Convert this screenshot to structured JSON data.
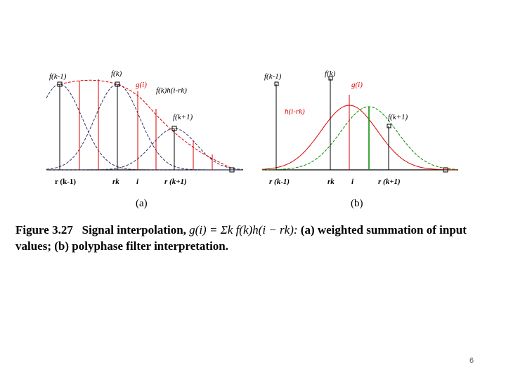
{
  "figure_a": {
    "labels": [
      "f(k-1)",
      "f(k)",
      "g(i)",
      "f(k)h(i-rk)",
      "f(k+1)"
    ],
    "axis_labels": [
      "r (k-1)",
      "rk",
      "i",
      "r (k+1)"
    ],
    "panel": "(a)"
  },
  "figure_b": {
    "labels": [
      "f(k-1)",
      "f(k)",
      "g(i)",
      "h(i-rk)",
      "f(k+1)"
    ],
    "axis_labels": [
      "r (k-1)",
      "rk",
      "i",
      "r (k+1)"
    ],
    "panel": "(b)"
  },
  "caption": {
    "label": "Figure 3.27",
    "text_before": "Signal interpolation,",
    "formula": "g(i) = Σk f(k)h(i − rk):",
    "text_after": "(a) weighted summation of input values; (b) polyphase filter interpretation."
  },
  "page_number": "6"
}
